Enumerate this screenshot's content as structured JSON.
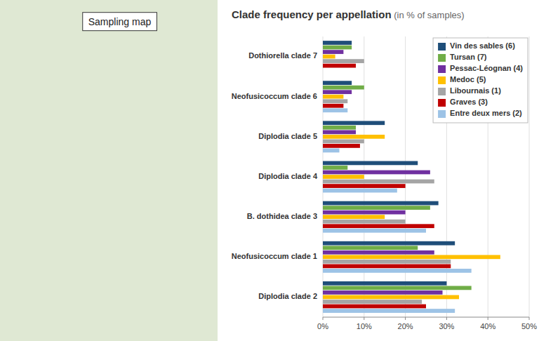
{
  "chart_data": {
    "type": "bar",
    "orientation": "horizontal",
    "title": "Clade frequency per appellation",
    "subtitle": " (in % of samples)",
    "annotations": [
      "Sampling map"
    ],
    "categories": [
      "Dothiorella clade 7",
      "Neofusicoccum clade 6",
      "Diplodia clade 5",
      "Diplodia clade 4",
      "B. dothidea clade 3",
      "Neofusicoccum clade 1",
      "Diplodia clade 2"
    ],
    "series": [
      {
        "name": "Vin des sables (6)",
        "color": "#1f4e79",
        "values": [
          7,
          7,
          15,
          23,
          28,
          32,
          30
        ]
      },
      {
        "name": "Tursan (7)",
        "color": "#70ad47",
        "values": [
          7,
          10,
          8,
          6,
          26,
          23,
          36
        ]
      },
      {
        "name": "Pessac-Léognan (4)",
        "color": "#7030a0",
        "values": [
          5,
          7,
          8,
          26,
          20,
          27,
          29
        ]
      },
      {
        "name": "Medoc (5)",
        "color": "#ffc000",
        "values": [
          3,
          5,
          15,
          10,
          15,
          43,
          33
        ]
      },
      {
        "name": "Libournais (1)",
        "color": "#a5a5a5",
        "values": [
          10,
          6,
          10,
          27,
          20,
          31,
          24
        ]
      },
      {
        "name": "Graves (3)",
        "color": "#c00000",
        "values": [
          8,
          5,
          9,
          20,
          27,
          31,
          25
        ]
      },
      {
        "name": "Entre deux mers (2)",
        "color": "#9dc3e6",
        "values": [
          0,
          6,
          4,
          18,
          25,
          36,
          32
        ]
      }
    ],
    "xlim": [
      0,
      50
    ],
    "xticks": [
      {
        "value": 0,
        "label": "0%"
      },
      {
        "value": 10,
        "label": "10%"
      },
      {
        "value": 20,
        "label": "20%"
      },
      {
        "value": 30,
        "label": "30%"
      },
      {
        "value": 40,
        "label": "40%"
      },
      {
        "value": 50,
        "label": "50%"
      }
    ],
    "grid": true,
    "legend": "upper right"
  }
}
